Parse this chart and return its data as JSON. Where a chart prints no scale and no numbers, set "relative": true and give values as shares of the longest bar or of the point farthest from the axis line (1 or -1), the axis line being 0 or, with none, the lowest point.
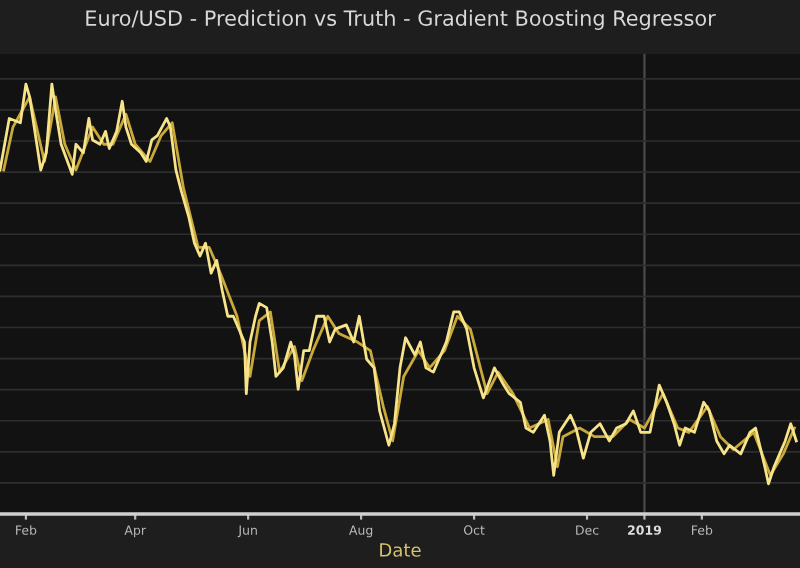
{
  "chart_data": {
    "type": "line",
    "title": "Euro/USD - Prediction vs Truth - Gradient Boosting Regressor",
    "xlabel": "Date",
    "relative": true,
    "grid": "y",
    "xlim": [
      "2018-01-18",
      "2019-03-26"
    ],
    "xticks": [
      {
        "value": "2018-02-01",
        "label": "Feb"
      },
      {
        "value": "2018-04-01",
        "label": "Apr"
      },
      {
        "value": "2018-06-01",
        "label": "Jun"
      },
      {
        "value": "2018-08-01",
        "label": "Aug"
      },
      {
        "value": "2018-10-01",
        "label": "Oct"
      },
      {
        "value": "2018-12-01",
        "label": "Dec"
      },
      {
        "value": "2019-01-01",
        "label": "2019"
      },
      {
        "value": "2019-02-01",
        "label": "Feb"
      }
    ],
    "ref_lines": [
      {
        "axis": "x",
        "value": "2019-01-01",
        "color": "#4a4a4a"
      }
    ],
    "series": [
      {
        "color": "#c9a93a",
        "x": [
          "2018-01-20",
          "2018-01-25",
          "2018-02-03",
          "2018-02-11",
          "2018-02-17",
          "2018-02-22",
          "2018-02-28",
          "2018-03-09",
          "2018-03-15",
          "2018-03-20",
          "2018-03-27",
          "2018-04-01",
          "2018-04-09",
          "2018-04-15",
          "2018-04-21",
          "2018-04-27",
          "2018-05-05",
          "2018-05-11",
          "2018-05-17",
          "2018-05-26",
          "2018-06-02",
          "2018-06-07",
          "2018-06-13",
          "2018-06-18",
          "2018-06-26",
          "2018-06-30",
          "2018-07-06",
          "2018-07-14",
          "2018-07-20",
          "2018-07-30",
          "2018-08-06",
          "2018-08-13",
          "2018-08-18",
          "2018-08-24",
          "2018-09-01",
          "2018-09-07",
          "2018-09-15",
          "2018-09-22",
          "2018-09-29",
          "2018-10-08",
          "2018-10-14",
          "2018-10-22",
          "2018-10-31",
          "2018-11-10",
          "2018-11-15",
          "2018-11-18",
          "2018-11-27",
          "2018-12-05",
          "2018-12-15",
          "2018-12-24",
          "2019-01-01",
          "2019-01-11",
          "2019-01-19",
          "2019-01-25",
          "2019-02-04",
          "2019-02-11",
          "2019-02-18",
          "2019-03-01",
          "2019-03-10",
          "2019-03-17",
          "2019-03-23"
        ],
        "values": [
          0.8,
          0.9,
          0.97,
          0.82,
          0.97,
          0.86,
          0.8,
          0.9,
          0.86,
          0.86,
          0.93,
          0.86,
          0.82,
          0.88,
          0.91,
          0.76,
          0.62,
          0.62,
          0.56,
          0.46,
          0.32,
          0.45,
          0.47,
          0.33,
          0.39,
          0.31,
          0.38,
          0.46,
          0.42,
          0.4,
          0.38,
          0.25,
          0.17,
          0.32,
          0.38,
          0.34,
          0.38,
          0.46,
          0.43,
          0.28,
          0.33,
          0.28,
          0.2,
          0.22,
          0.11,
          0.18,
          0.2,
          0.18,
          0.18,
          0.22,
          0.2,
          0.28,
          0.2,
          0.19,
          0.25,
          0.18,
          0.15,
          0.19,
          0.09,
          0.14,
          0.2
        ]
      },
      {
        "color": "#f7e48a",
        "x": [
          "2018-01-18",
          "2018-01-23",
          "2018-01-29",
          "2018-02-01",
          "2018-02-03",
          "2018-02-09",
          "2018-02-12",
          "2018-02-15",
          "2018-02-17",
          "2018-02-20",
          "2018-02-26",
          "2018-02-28",
          "2018-03-04",
          "2018-03-07",
          "2018-03-09",
          "2018-03-13",
          "2018-03-16",
          "2018-03-18",
          "2018-03-22",
          "2018-03-25",
          "2018-03-27",
          "2018-03-30",
          "2018-04-04",
          "2018-04-07",
          "2018-04-10",
          "2018-04-13",
          "2018-04-18",
          "2018-04-20",
          "2018-04-23",
          "2018-04-26",
          "2018-04-30",
          "2018-05-03",
          "2018-05-06",
          "2018-05-09",
          "2018-05-12",
          "2018-05-15",
          "2018-05-18",
          "2018-05-21",
          "2018-05-24",
          "2018-05-30",
          "2018-05-31",
          "2018-06-02",
          "2018-06-05",
          "2018-06-07",
          "2018-06-11",
          "2018-06-14",
          "2018-06-16",
          "2018-06-20",
          "2018-06-24",
          "2018-06-26",
          "2018-06-28",
          "2018-07-01",
          "2018-07-04",
          "2018-07-08",
          "2018-07-12",
          "2018-07-15",
          "2018-07-18",
          "2018-07-24",
          "2018-07-28",
          "2018-07-31",
          "2018-08-04",
          "2018-08-08",
          "2018-08-11",
          "2018-08-16",
          "2018-08-19",
          "2018-08-22",
          "2018-08-25",
          "2018-08-30",
          "2018-09-02",
          "2018-09-05",
          "2018-09-09",
          "2018-09-13",
          "2018-09-16",
          "2018-09-20",
          "2018-09-23",
          "2018-09-27",
          "2018-10-01",
          "2018-10-06",
          "2018-10-12",
          "2018-10-17",
          "2018-10-20",
          "2018-10-26",
          "2018-10-29",
          "2018-11-02",
          "2018-11-08",
          "2018-11-11",
          "2018-11-13",
          "2018-11-16",
          "2018-11-22",
          "2018-11-25",
          "2018-11-29",
          "2018-12-03",
          "2018-12-08",
          "2018-12-13",
          "2018-12-17",
          "2018-12-22",
          "2018-12-26",
          "2018-12-30",
          "2019-01-04",
          "2019-01-09",
          "2019-01-13",
          "2019-01-17",
          "2019-01-20",
          "2019-01-23",
          "2019-01-28",
          "2019-02-02",
          "2019-02-05",
          "2019-02-09",
          "2019-02-13",
          "2019-02-16",
          "2019-02-22",
          "2019-02-27",
          "2019-03-02",
          "2019-03-07",
          "2019-03-09",
          "2019-03-12",
          "2019-03-15",
          "2019-03-18",
          "2019-03-21",
          "2019-03-24"
        ],
        "values": [
          0.8,
          0.92,
          0.91,
          1.0,
          0.97,
          0.8,
          0.84,
          1.0,
          0.94,
          0.86,
          0.79,
          0.86,
          0.84,
          0.92,
          0.87,
          0.86,
          0.89,
          0.85,
          0.89,
          0.96,
          0.9,
          0.86,
          0.84,
          0.82,
          0.87,
          0.88,
          0.92,
          0.9,
          0.8,
          0.75,
          0.69,
          0.63,
          0.6,
          0.63,
          0.56,
          0.59,
          0.52,
          0.46,
          0.46,
          0.4,
          0.28,
          0.4,
          0.46,
          0.49,
          0.48,
          0.4,
          0.32,
          0.34,
          0.4,
          0.37,
          0.29,
          0.38,
          0.38,
          0.46,
          0.46,
          0.4,
          0.43,
          0.44,
          0.4,
          0.46,
          0.36,
          0.34,
          0.24,
          0.16,
          0.21,
          0.34,
          0.41,
          0.37,
          0.4,
          0.34,
          0.33,
          0.37,
          0.4,
          0.47,
          0.47,
          0.43,
          0.34,
          0.27,
          0.34,
          0.3,
          0.28,
          0.26,
          0.2,
          0.19,
          0.23,
          0.17,
          0.09,
          0.19,
          0.23,
          0.2,
          0.13,
          0.19,
          0.21,
          0.17,
          0.2,
          0.21,
          0.24,
          0.19,
          0.19,
          0.3,
          0.26,
          0.21,
          0.16,
          0.2,
          0.19,
          0.26,
          0.24,
          0.17,
          0.14,
          0.16,
          0.14,
          0.19,
          0.2,
          0.11,
          0.07,
          0.11,
          0.14,
          0.17,
          0.21,
          0.17
        ]
      }
    ]
  }
}
